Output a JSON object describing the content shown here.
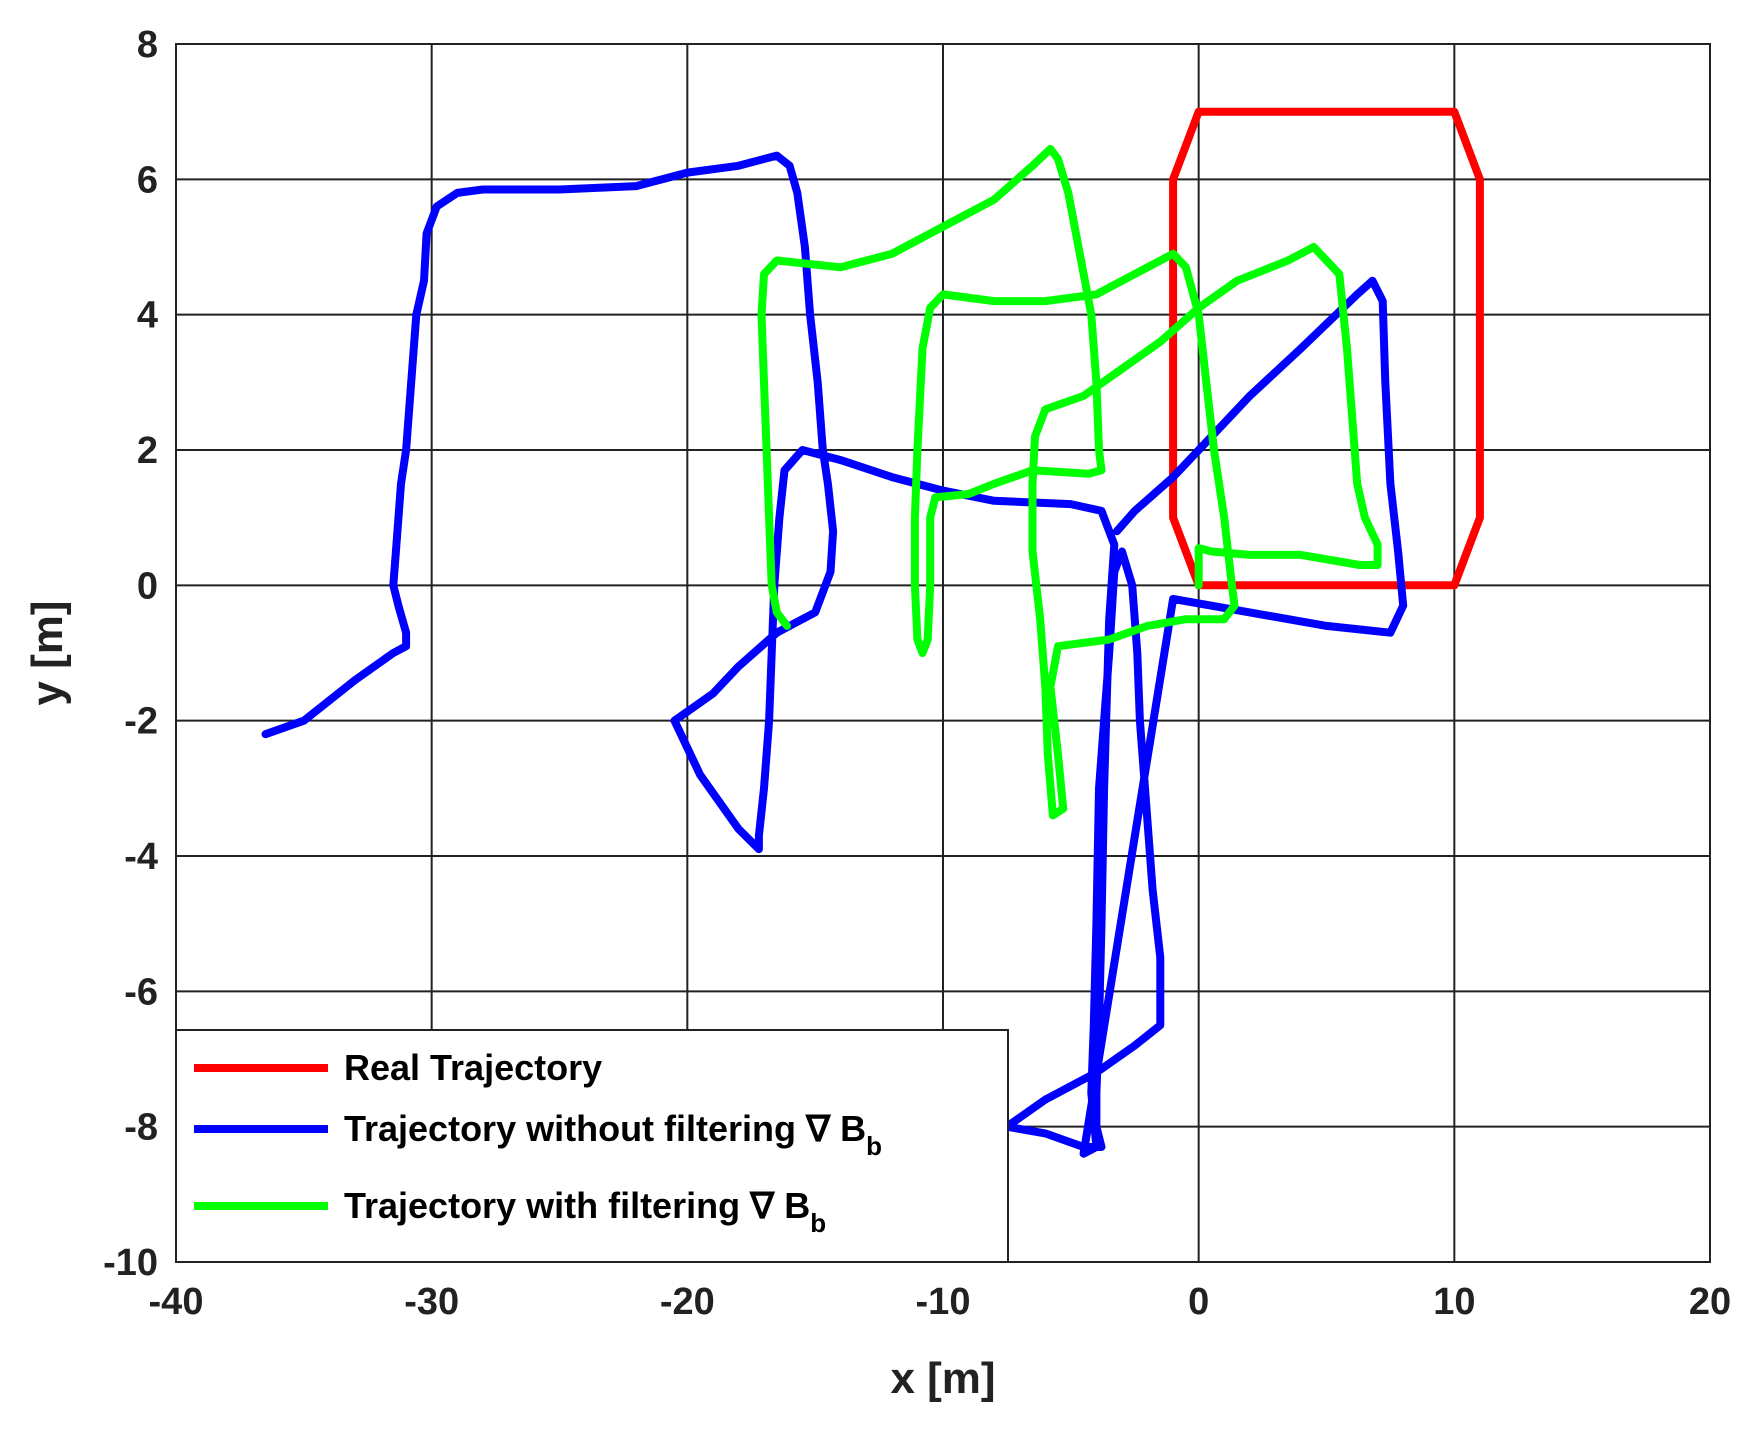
{
  "chart_data": {
    "type": "line",
    "xlabel": "x [m]",
    "ylabel": "y [m]",
    "xlim": [
      -40,
      20
    ],
    "ylim": [
      -10,
      8
    ],
    "x_ticks": [
      -40,
      -30,
      -20,
      -10,
      0,
      10,
      20
    ],
    "y_ticks": [
      -10,
      -8,
      -6,
      -4,
      -2,
      0,
      2,
      4,
      6,
      8
    ],
    "x_tick_labels": [
      "-40",
      "-30",
      "-20",
      "-10",
      "0",
      "10",
      "20"
    ],
    "y_tick_labels": [
      "-10",
      "-8",
      "-6",
      "-4",
      "-2",
      "0",
      "2",
      "4",
      "6",
      "8"
    ],
    "grid": true,
    "legend_position": "bottom-left",
    "series": [
      {
        "name": "Real Trajectory",
        "color": "#ff0000",
        "points": [
          [
            -1,
            1
          ],
          [
            -1,
            6
          ],
          [
            0,
            7
          ],
          [
            10,
            7
          ],
          [
            11,
            6
          ],
          [
            11,
            1
          ],
          [
            10,
            0
          ],
          [
            0,
            0
          ],
          [
            -1,
            1
          ]
        ]
      },
      {
        "name": "Trajectory without filtering",
        "name_suffix": "b",
        "color": "#0000ff",
        "points": [
          [
            -36.5,
            -2.2
          ],
          [
            -35,
            -2
          ],
          [
            -33,
            -1.4
          ],
          [
            -31.5,
            -1
          ],
          [
            -31,
            -0.9
          ],
          [
            -31,
            -0.7
          ],
          [
            -31.3,
            -0.3
          ],
          [
            -31.5,
            0
          ],
          [
            -31.4,
            0.5
          ],
          [
            -31.2,
            1.5
          ],
          [
            -31,
            2
          ],
          [
            -30.8,
            3
          ],
          [
            -30.6,
            4
          ],
          [
            -30.3,
            4.5
          ],
          [
            -30.2,
            5.2
          ],
          [
            -29.8,
            5.6
          ],
          [
            -29,
            5.8
          ],
          [
            -28,
            5.85
          ],
          [
            -25,
            5.85
          ],
          [
            -22,
            5.9
          ],
          [
            -20,
            6.1
          ],
          [
            -18,
            6.2
          ],
          [
            -16.5,
            6.35
          ],
          [
            -16,
            6.2
          ],
          [
            -15.7,
            5.8
          ],
          [
            -15.4,
            5
          ],
          [
            -15.2,
            4
          ],
          [
            -14.9,
            3
          ],
          [
            -14.7,
            2
          ],
          [
            -14.5,
            1.5
          ],
          [
            -14.3,
            0.8
          ],
          [
            -14.4,
            0.2
          ],
          [
            -15,
            -0.4
          ],
          [
            -16.5,
            -0.7
          ],
          [
            -18,
            -1.2
          ],
          [
            -19,
            -1.6
          ],
          [
            -20.5,
            -2
          ],
          [
            -19.5,
            -2.8
          ],
          [
            -18,
            -3.6
          ],
          [
            -17.2,
            -3.9
          ],
          [
            -17.2,
            -3.7
          ],
          [
            -17,
            -3
          ],
          [
            -16.8,
            -2
          ],
          [
            -16.7,
            -1
          ],
          [
            -16.6,
            0
          ],
          [
            -16.4,
            1
          ],
          [
            -16.2,
            1.7
          ],
          [
            -15.5,
            2
          ],
          [
            -14,
            1.85
          ],
          [
            -12,
            1.6
          ],
          [
            -10,
            1.4
          ],
          [
            -8,
            1.25
          ],
          [
            -5,
            1.2
          ],
          [
            -3.8,
            1.1
          ],
          [
            -3.3,
            0.6
          ],
          [
            -3.5,
            -0.5
          ],
          [
            -3.7,
            -3
          ],
          [
            -3.8,
            -5
          ],
          [
            -3.9,
            -6.5
          ],
          [
            -4,
            -7.5
          ],
          [
            -4,
            -8
          ],
          [
            -3.8,
            -8.3
          ],
          [
            -4.5,
            -8.3
          ],
          [
            -6,
            -8.1
          ],
          [
            -7.5,
            -8
          ],
          [
            -6,
            -7.6
          ],
          [
            -4,
            -7.2
          ],
          [
            -2.5,
            -6.8
          ],
          [
            -1.5,
            -6.5
          ],
          [
            -1.5,
            -5.5
          ],
          [
            -1.8,
            -4.5
          ],
          [
            -2.1,
            -3
          ],
          [
            -2.3,
            -2
          ],
          [
            -2.4,
            -1
          ],
          [
            -2.6,
            0
          ],
          [
            -3,
            0.5
          ],
          [
            -3.3,
            0.2
          ],
          [
            -3.5,
            -1
          ],
          [
            -3.9,
            -3
          ],
          [
            -4,
            -5
          ],
          [
            -4.1,
            -6.5
          ],
          [
            -4.2,
            -7.5
          ],
          [
            -4,
            -8.3
          ],
          [
            -4.5,
            -8.4
          ],
          [
            -1,
            -0.2
          ],
          [
            2,
            -0.4
          ],
          [
            5,
            -0.6
          ],
          [
            7.5,
            -0.7
          ],
          [
            8,
            -0.3
          ],
          [
            7.8,
            0.5
          ],
          [
            7.5,
            1.5
          ],
          [
            7.3,
            3
          ],
          [
            7.2,
            4.2
          ],
          [
            6.8,
            4.5
          ],
          [
            6.2,
            4.3
          ],
          [
            4,
            3.5
          ],
          [
            2,
            2.8
          ],
          [
            0.5,
            2.2
          ],
          [
            -1,
            1.6
          ],
          [
            -2.5,
            1.1
          ],
          [
            -3.2,
            0.8
          ]
        ]
      },
      {
        "name": "Trajectory with filtering",
        "name_suffix": "b",
        "color": "#00ff00",
        "points": [
          [
            -16.1,
            -0.6
          ],
          [
            -16.5,
            -0.4
          ],
          [
            -16.7,
            0
          ],
          [
            -16.8,
            1
          ],
          [
            -16.9,
            2
          ],
          [
            -17,
            3
          ],
          [
            -17.1,
            4
          ],
          [
            -17,
            4.6
          ],
          [
            -16.5,
            4.8
          ],
          [
            -14,
            4.7
          ],
          [
            -12,
            4.9
          ],
          [
            -10,
            5.3
          ],
          [
            -8,
            5.7
          ],
          [
            -6.5,
            6.2
          ],
          [
            -5.8,
            6.45
          ],
          [
            -5.5,
            6.3
          ],
          [
            -5.1,
            5.8
          ],
          [
            -4.7,
            5
          ],
          [
            -4.4,
            4.4
          ],
          [
            -4.2,
            4
          ],
          [
            -4,
            3
          ],
          [
            -3.9,
            2
          ],
          [
            -3.8,
            1.7
          ],
          [
            -4.3,
            1.65
          ],
          [
            -6.5,
            1.7
          ],
          [
            -8,
            1.5
          ],
          [
            -9,
            1.35
          ],
          [
            -10.3,
            1.3
          ],
          [
            -10.5,
            1
          ],
          [
            -10.5,
            0
          ],
          [
            -10.6,
            -0.8
          ],
          [
            -10.8,
            -1
          ],
          [
            -11,
            -0.8
          ],
          [
            -11.1,
            0
          ],
          [
            -11.1,
            1
          ],
          [
            -11,
            2
          ],
          [
            -10.8,
            3.5
          ],
          [
            -10.5,
            4.1
          ],
          [
            -10,
            4.3
          ],
          [
            -8,
            4.2
          ],
          [
            -6,
            4.2
          ],
          [
            -4,
            4.3
          ],
          [
            -2,
            4.7
          ],
          [
            -1,
            4.9
          ],
          [
            -0.5,
            4.7
          ],
          [
            0,
            4
          ],
          [
            0.3,
            3
          ],
          [
            0.6,
            2
          ],
          [
            1,
            1
          ],
          [
            1.3,
            0
          ],
          [
            1.4,
            -0.3
          ],
          [
            1,
            -0.5
          ],
          [
            -0.5,
            -0.5
          ],
          [
            -2,
            -0.6
          ],
          [
            -3.5,
            -0.8
          ],
          [
            -5.5,
            -0.9
          ],
          [
            -5.8,
            -1.5
          ],
          [
            -5.5,
            -2.5
          ],
          [
            -5.3,
            -3.3
          ],
          [
            -5.7,
            -3.4
          ],
          [
            -5.9,
            -2.5
          ],
          [
            -6,
            -1.5
          ],
          [
            -6.2,
            -0.5
          ],
          [
            -6.5,
            0.5
          ],
          [
            -6.5,
            1.5
          ],
          [
            -6.4,
            2.2
          ],
          [
            -6,
            2.6
          ],
          [
            -4.5,
            2.8
          ],
          [
            -3,
            3.2
          ],
          [
            -1.5,
            3.6
          ],
          [
            0,
            4.1
          ],
          [
            1.5,
            4.5
          ],
          [
            3.5,
            4.8
          ],
          [
            4.5,
            5
          ],
          [
            5,
            4.8
          ],
          [
            5.5,
            4.6
          ],
          [
            5.8,
            3.5
          ],
          [
            6,
            2.5
          ],
          [
            6.2,
            1.5
          ],
          [
            6.5,
            1
          ],
          [
            7,
            0.6
          ],
          [
            7,
            0.3
          ],
          [
            6.3,
            0.3
          ],
          [
            4,
            0.45
          ],
          [
            2,
            0.45
          ],
          [
            0.5,
            0.5
          ],
          [
            0,
            0.55
          ],
          [
            0,
            0
          ]
        ]
      }
    ]
  }
}
